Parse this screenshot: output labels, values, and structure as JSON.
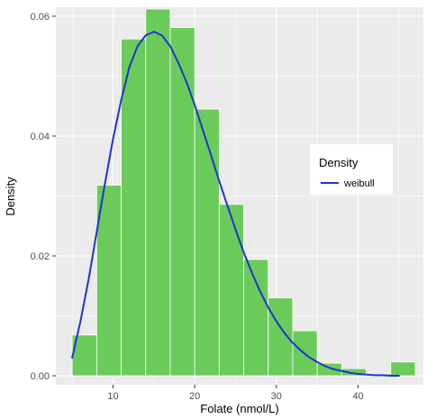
{
  "chart_data": {
    "type": "bar",
    "subtype": "histogram-with-density-curve",
    "title": "",
    "xlabel": "Folate (nmol/L)",
    "ylabel": "Density",
    "xlim": [
      3,
      48
    ],
    "ylim": [
      -0.0015,
      0.0615
    ],
    "x_ticks": [
      10,
      20,
      30,
      40
    ],
    "x_tick_labels": [
      "10",
      "20",
      "30",
      "40"
    ],
    "y_ticks": [
      0.0,
      0.02,
      0.04,
      0.06
    ],
    "y_tick_labels": [
      "0.00",
      "0.02",
      "0.04",
      "0.06"
    ],
    "grid": true,
    "background": "#ebebeb",
    "bins": [
      {
        "x0": 5,
        "x1": 8,
        "value": 0.0068
      },
      {
        "x0": 8,
        "x1": 11,
        "value": 0.0318
      },
      {
        "x0": 11,
        "x1": 14,
        "value": 0.0562
      },
      {
        "x0": 14,
        "x1": 17,
        "value": 0.0612
      },
      {
        "x0": 17,
        "x1": 20,
        "value": 0.0581
      },
      {
        "x0": 20,
        "x1": 23,
        "value": 0.0445
      },
      {
        "x0": 23,
        "x1": 26,
        "value": 0.0286
      },
      {
        "x0": 26,
        "x1": 29,
        "value": 0.0194
      },
      {
        "x0": 29,
        "x1": 32,
        "value": 0.013
      },
      {
        "x0": 32,
        "x1": 35,
        "value": 0.0075
      },
      {
        "x0": 35,
        "x1": 38,
        "value": 0.0021
      },
      {
        "x0": 38,
        "x1": 41,
        "value": 0.0012
      },
      {
        "x0": 41,
        "x1": 44,
        "value": 0.0003
      },
      {
        "x0": 44,
        "x1": 47,
        "value": 0.0023
      }
    ],
    "bar_color": "#5ec84e",
    "series": [
      {
        "name": "weibull",
        "type": "line",
        "color": "#2233cc",
        "x": [
          5,
          6,
          7,
          8,
          9,
          10,
          11,
          12,
          13,
          14,
          15,
          16,
          17,
          18,
          19,
          20,
          21,
          22,
          23,
          24,
          25,
          26,
          27,
          28,
          29,
          30,
          31,
          32,
          33,
          34,
          35,
          36,
          37,
          38,
          39,
          40,
          41,
          42,
          43,
          44,
          45
        ],
        "y": [
          0.003,
          0.009,
          0.016,
          0.024,
          0.032,
          0.0395,
          0.046,
          0.0515,
          0.055,
          0.0568,
          0.0574,
          0.0568,
          0.055,
          0.0522,
          0.049,
          0.0452,
          0.041,
          0.0368,
          0.0325,
          0.0284,
          0.0244,
          0.0206,
          0.0172,
          0.0141,
          0.0114,
          0.0091,
          0.0071,
          0.0055,
          0.0042,
          0.0031,
          0.0023,
          0.0016,
          0.0011,
          0.0008,
          0.0005,
          0.0003,
          0.0002,
          0.0001,
          0.0001,
          0.0,
          0.0
        ]
      }
    ],
    "legend": {
      "title": "Density",
      "entries": [
        "weibull"
      ],
      "placement": "right"
    }
  }
}
